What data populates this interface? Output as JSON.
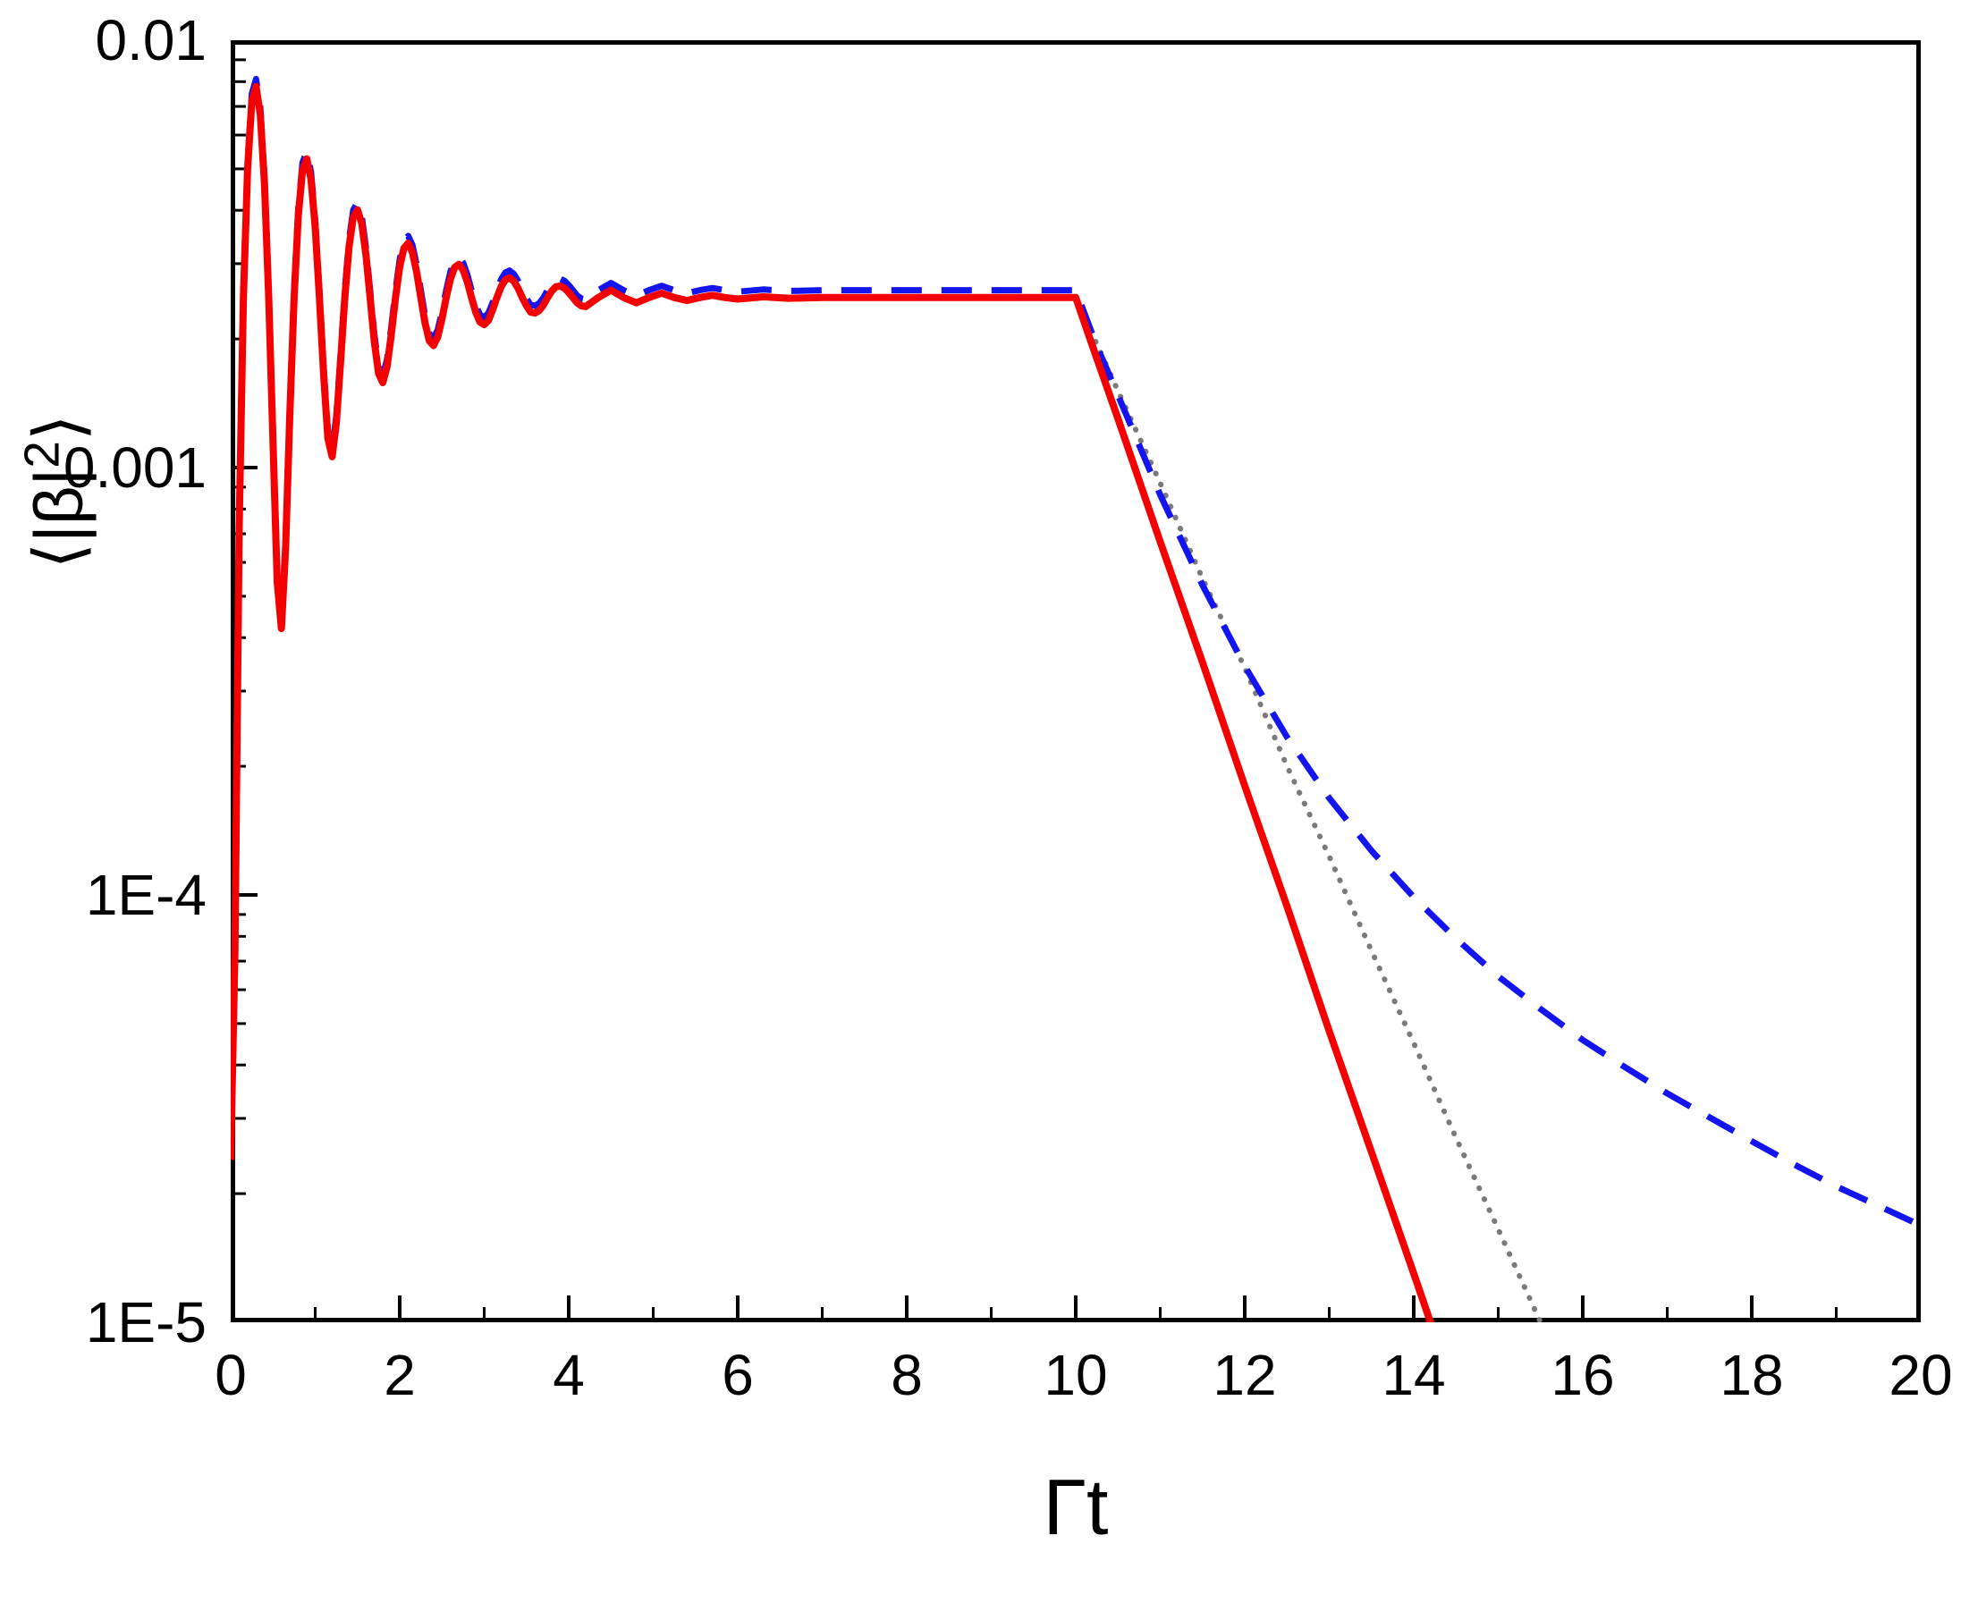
{
  "chart_data": {
    "type": "line",
    "title": "",
    "xlabel": "Γt",
    "ylabel_pre": "⟨|β|",
    "ylabel_sup": "2",
    "ylabel_post": "⟩",
    "x_scale": "linear",
    "y_scale": "log",
    "xlim": [
      0,
      20
    ],
    "ylim": [
      1e-05,
      0.01
    ],
    "axis_color": "#000000",
    "grid": false,
    "legend": "none",
    "x_ticks": [
      0,
      2,
      4,
      6,
      8,
      10,
      12,
      14,
      16,
      18,
      20
    ],
    "x_minor_ticks": [
      1,
      3,
      5,
      7,
      9,
      11,
      13,
      15,
      17,
      19
    ],
    "y_ticks": [
      {
        "value": 0.01,
        "label": "0.01"
      },
      {
        "value": 0.001,
        "label": "0.001"
      },
      {
        "value": 0.0001,
        "label": "1E-4"
      },
      {
        "value": 1e-05,
        "label": "1E-5"
      }
    ],
    "y_minor_ticks": [
      0.009,
      0.008,
      0.007,
      0.006,
      0.005,
      0.004,
      0.003,
      0.002,
      0.0009,
      0.0008,
      0.0007,
      0.0006,
      0.0005,
      0.0004,
      0.0003,
      0.0002,
      9e-05,
      8e-05,
      7e-05,
      6e-05,
      5e-05,
      4e-05,
      3e-05,
      2e-05
    ],
    "key_features": {
      "plateau_value": 0.0025,
      "oscillation_period": 0.6,
      "first_peak": {
        "t": 0.3,
        "value": 0.0078
      },
      "first_dip": {
        "t": 0.6,
        "value": 0.00042
      },
      "decay_start_time": 10,
      "red_curve_crosses_1e-5_at": 14.2,
      "dotted_curve_crosses_1e-5_at": 15.5,
      "blue_curve_value_at_t20": 1.7e-05
    },
    "shared_oscillation": [
      [
        0,
        2.4e-05
      ],
      [
        0.05,
        7.3e-05
      ],
      [
        0.1,
        0.00073
      ],
      [
        0.15,
        0.0025
      ],
      [
        0.2,
        0.005
      ],
      [
        0.25,
        0.0072
      ],
      [
        0.3,
        0.0078
      ],
      [
        0.35,
        0.0067
      ],
      [
        0.4,
        0.0046
      ],
      [
        0.45,
        0.0025
      ],
      [
        0.5,
        0.00115
      ],
      [
        0.55,
        0.00054
      ],
      [
        0.6,
        0.00042
      ],
      [
        0.65,
        0.00065
      ],
      [
        0.7,
        0.00133
      ],
      [
        0.75,
        0.0025
      ],
      [
        0.8,
        0.00389
      ],
      [
        0.85,
        0.00497
      ],
      [
        0.9,
        0.00528
      ],
      [
        0.95,
        0.00473
      ],
      [
        1.0,
        0.00365
      ],
      [
        1.05,
        0.0025
      ],
      [
        1.1,
        0.00164
      ],
      [
        1.15,
        0.00117
      ],
      [
        1.2,
        0.00106
      ],
      [
        1.25,
        0.00127
      ],
      [
        1.3,
        0.00177
      ],
      [
        1.35,
        0.0025
      ],
      [
        1.4,
        0.00328
      ],
      [
        1.45,
        0.00385
      ],
      [
        1.5,
        0.00401
      ],
      [
        1.55,
        0.00373
      ],
      [
        1.6,
        0.00315
      ],
      [
        1.65,
        0.0025
      ],
      [
        1.7,
        0.00197
      ],
      [
        1.75,
        0.00166
      ],
      [
        1.8,
        0.00158
      ],
      [
        1.85,
        0.00172
      ],
      [
        1.9,
        0.00205
      ],
      [
        1.95,
        0.0025
      ],
      [
        2.0,
        0.00295
      ],
      [
        2.05,
        0.00326
      ],
      [
        2.1,
        0.00335
      ],
      [
        2.15,
        0.00319
      ],
      [
        2.2,
        0.00287
      ],
      [
        2.25,
        0.0025
      ],
      [
        2.3,
        0.00218
      ],
      [
        2.35,
        0.00198
      ],
      [
        2.4,
        0.00193
      ],
      [
        2.45,
        0.00202
      ],
      [
        2.5,
        0.00223
      ],
      [
        2.55,
        0.0025
      ],
      [
        2.6,
        0.00276
      ],
      [
        2.65,
        0.00294
      ],
      [
        2.7,
        0.00299
      ],
      [
        2.75,
        0.0029
      ],
      [
        2.8,
        0.00272
      ],
      [
        2.85,
        0.0025
      ],
      [
        2.9,
        0.00231
      ],
      [
        2.95,
        0.00219
      ],
      [
        3.0,
        0.00216
      ],
      [
        3.05,
        0.00221
      ],
      [
        3.1,
        0.00234
      ],
      [
        3.15,
        0.0025
      ],
      [
        3.2,
        0.00265
      ],
      [
        3.25,
        0.00275
      ],
      [
        3.3,
        0.00278
      ],
      [
        3.35,
        0.00273
      ],
      [
        3.4,
        0.00263
      ],
      [
        3.45,
        0.0025
      ],
      [
        3.5,
        0.00239
      ],
      [
        3.55,
        0.00231
      ],
      [
        3.6,
        0.0023
      ],
      [
        3.65,
        0.00233
      ],
      [
        3.7,
        0.0024
      ],
      [
        3.75,
        0.0025
      ],
      [
        3.8,
        0.00259
      ],
      [
        3.85,
        0.00265
      ],
      [
        3.9,
        0.00266
      ],
      [
        3.95,
        0.00263
      ],
      [
        4.0,
        0.00257
      ],
      [
        4.05,
        0.0025
      ],
      [
        4.1,
        0.00243
      ],
      [
        4.15,
        0.00239
      ],
      [
        4.2,
        0.00238
      ],
      [
        4.35,
        0.0025
      ],
      [
        4.5,
        0.0026
      ],
      [
        4.65,
        0.0025
      ],
      [
        4.8,
        0.00243
      ],
      [
        4.95,
        0.0025
      ],
      [
        5.1,
        0.00256
      ],
      [
        5.25,
        0.0025
      ],
      [
        5.4,
        0.00246
      ],
      [
        5.55,
        0.0025
      ],
      [
        5.7,
        0.00253
      ],
      [
        5.85,
        0.0025
      ],
      [
        6.0,
        0.00248
      ],
      [
        6.3,
        0.00251
      ],
      [
        6.6,
        0.00249
      ],
      [
        7.0,
        0.0025
      ],
      [
        7.5,
        0.0025
      ],
      [
        8.0,
        0.0025
      ],
      [
        8.5,
        0.0025
      ],
      [
        9.0,
        0.0025
      ],
      [
        9.5,
        0.0025
      ],
      [
        10.0,
        0.0025
      ]
    ],
    "series": [
      {
        "name": "gray-dotted",
        "color": "#7a7a7a",
        "style": "dotted",
        "width": 6,
        "prepend_shared": false,
        "scale": 1,
        "points": [
          [
            10.0,
            0.0025
          ],
          [
            10.5,
            0.00151
          ],
          [
            11.0,
            0.00092
          ],
          [
            11.5,
            0.00055
          ],
          [
            12.0,
            0.00034
          ],
          [
            12.5,
            0.0002
          ],
          [
            13.0,
            0.000123
          ],
          [
            13.5,
            7.4e-05
          ],
          [
            14.0,
            4.5e-05
          ],
          [
            14.5,
            2.7e-05
          ],
          [
            15.0,
            1.65e-05
          ],
          [
            15.5,
            1e-05
          ],
          [
            15.8,
            7.6e-06
          ]
        ]
      },
      {
        "name": "blue-dashed",
        "color": "#1414ee",
        "style": "dashed",
        "width": 7,
        "prepend_shared": true,
        "scale": 1.04,
        "points": [
          [
            10.25,
            0.00185
          ],
          [
            10.5,
            0.00142
          ],
          [
            11.0,
            0.00083
          ],
          [
            11.5,
            0.00051
          ],
          [
            12.0,
            0.00033
          ],
          [
            12.5,
            0.000225
          ],
          [
            13.0,
            0.000162
          ],
          [
            13.5,
            0.000122
          ],
          [
            14.0,
            9.5e-05
          ],
          [
            14.5,
            7.6e-05
          ],
          [
            15.0,
            6.2e-05
          ],
          [
            15.5,
            5.2e-05
          ],
          [
            16.0,
            4.4e-05
          ],
          [
            16.5,
            3.8e-05
          ],
          [
            17.0,
            3.3e-05
          ],
          [
            17.5,
            2.9e-05
          ],
          [
            18.0,
            2.55e-05
          ],
          [
            18.5,
            2.25e-05
          ],
          [
            19.0,
            2e-05
          ],
          [
            19.5,
            1.8e-05
          ],
          [
            20.0,
            1.62e-05
          ]
        ]
      },
      {
        "name": "red-solid",
        "color": "#f40000",
        "style": "solid",
        "width": 8,
        "prepend_shared": true,
        "scale": 1,
        "points": [
          [
            10.2,
            0.00192
          ],
          [
            10.5,
            0.0013
          ],
          [
            11.0,
            0.00067
          ],
          [
            11.5,
            0.00035
          ],
          [
            12.0,
            0.00018
          ],
          [
            12.5,
            9.4e-05
          ],
          [
            13.0,
            4.8e-05
          ],
          [
            13.5,
            2.5e-05
          ],
          [
            14.0,
            1.3e-05
          ],
          [
            14.5,
            6.7e-06
          ]
        ]
      }
    ]
  }
}
